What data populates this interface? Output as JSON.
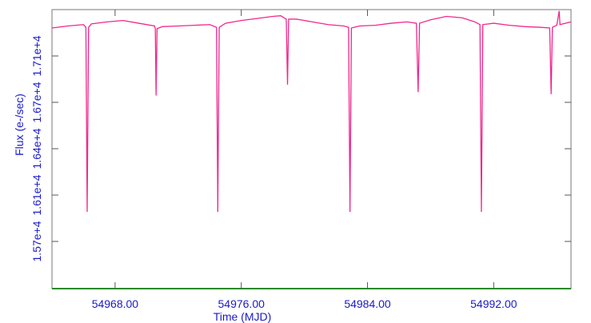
{
  "chart_data": {
    "type": "line",
    "xlabel": "Time (MJD)",
    "ylabel": "Flux (e-/sec)",
    "x": [
      54964.0,
      54965.0,
      54966.0,
      54966.15,
      54966.23,
      54966.32,
      54966.5,
      54967.5,
      54968.5,
      54969.5,
      54970.5,
      54970.55,
      54970.6,
      54970.66,
      54971.0,
      54972.0,
      54973.0,
      54974.0,
      54974.43,
      54974.51,
      54974.6,
      54975.0,
      54976.0,
      54977.0,
      54978.0,
      54978.5,
      54978.85,
      54978.93,
      54979.0,
      54979.5,
      54980.5,
      54981.5,
      54982.5,
      54982.8,
      54982.89,
      54982.98,
      54983.5,
      54984.5,
      54985.5,
      54986.5,
      54987.1,
      54987.21,
      54987.3,
      54988.0,
      54989.0,
      54990.0,
      54990.8,
      54991.13,
      54991.22,
      54991.31,
      54992.0,
      54993.0,
      54994.0,
      54995.0,
      54995.55,
      54995.64,
      54995.72,
      54996.0,
      54996.15,
      54996.2,
      54996.9
    ],
    "series": [
      {
        "color": "#f0288c",
        "values": [
          17285,
          17300,
          17310,
          17290,
          15937,
          17290,
          17315,
          17330,
          17340,
          17320,
          17300,
          17280,
          16790,
          17280,
          17295,
          17300,
          17305,
          17310,
          17290,
          15937,
          17290,
          17320,
          17340,
          17355,
          17370,
          17375,
          17350,
          16870,
          17350,
          17350,
          17330,
          17310,
          17300,
          17290,
          15937,
          17285,
          17300,
          17305,
          17320,
          17330,
          17320,
          16815,
          17320,
          17345,
          17370,
          17360,
          17330,
          17310,
          15937,
          17310,
          17320,
          17305,
          17295,
          17290,
          17285,
          16800,
          17290,
          17305,
          17410,
          17310,
          17330
        ]
      }
    ],
    "xlim": [
      54964.0,
      54996.9
    ],
    "xticks": [
      {
        "value": 54968,
        "label": "54968.00"
      },
      {
        "value": 54976,
        "label": "54976.00"
      },
      {
        "value": 54984,
        "label": "54984.00"
      },
      {
        "value": 54992,
        "label": "54992.00"
      }
    ],
    "ylim": [
      15374,
      17420
    ],
    "yticks": [
      {
        "value": 15720,
        "label": "1.57e+4"
      },
      {
        "value": 16060,
        "label": "1.61e+4"
      },
      {
        "value": 16400,
        "label": "1.64e+4"
      },
      {
        "value": 16740,
        "label": "1.67e+4"
      },
      {
        "value": 17080,
        "label": "1.71e+4"
      }
    ]
  }
}
